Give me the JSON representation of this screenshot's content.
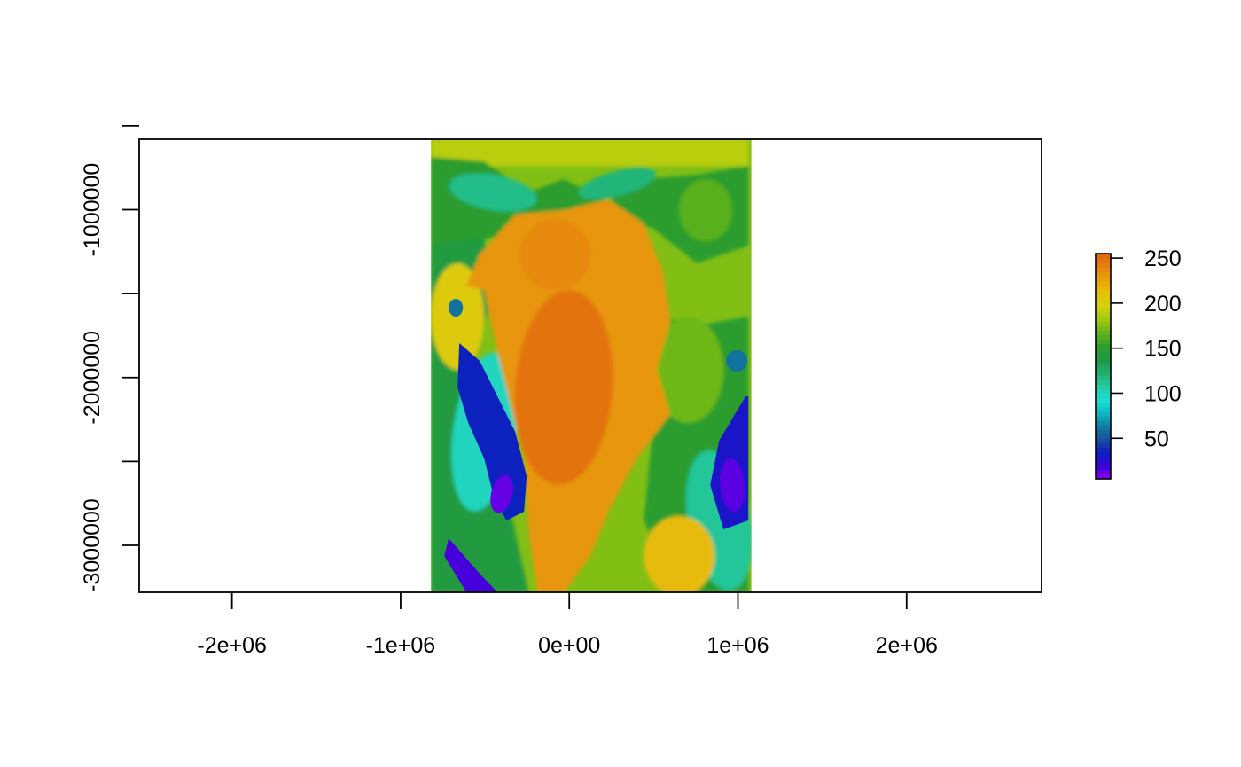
{
  "chart_data": {
    "type": "heatmap",
    "title": "",
    "xlabel": "",
    "ylabel": "",
    "xlim": [
      -2550000,
      2800000
    ],
    "ylim": [
      -3280000,
      -580000
    ],
    "x_ticks": [
      {
        "value": -2000000,
        "label": "-2e+06"
      },
      {
        "value": -1000000,
        "label": "-1e+06"
      },
      {
        "value": 0,
        "label": "0e+00"
      },
      {
        "value": 1000000,
        "label": "1e+06"
      },
      {
        "value": 2000000,
        "label": "2e+06"
      }
    ],
    "y_ticks": [
      {
        "value": -500000,
        "label": ""
      },
      {
        "value": -1000000,
        "label": "-1000000"
      },
      {
        "value": -1500000,
        "label": ""
      },
      {
        "value": -2000000,
        "label": "-2000000"
      },
      {
        "value": -2500000,
        "label": ""
      },
      {
        "value": -3000000,
        "label": "-3000000"
      }
    ],
    "raster_extent": {
      "xmin": -820000,
      "xmax": 1080000,
      "ymin": -3280000,
      "ymax": -580000
    },
    "value_range": [
      5,
      255
    ],
    "colorbar": {
      "ticks": [
        {
          "value": 50,
          "label": "50"
        },
        {
          "value": 100,
          "label": "100"
        },
        {
          "value": 150,
          "label": "150"
        },
        {
          "value": 200,
          "label": "200"
        },
        {
          "value": 250,
          "label": "250"
        }
      ],
      "placement": "right",
      "colors": [
        "#8b00ee",
        "#3c00d8",
        "#0b1fbf",
        "#1a4fa0",
        "#0f7f9e",
        "#10b8c4",
        "#1ee0d8",
        "#22c9a0",
        "#20b070",
        "#1d9a45",
        "#2e9e2a",
        "#5fb31b",
        "#9ec811",
        "#cfd20c",
        "#e6c409",
        "#e8a40a",
        "#e6840c",
        "#e0640e"
      ]
    },
    "legend": "colorbar right",
    "grid": false
  }
}
